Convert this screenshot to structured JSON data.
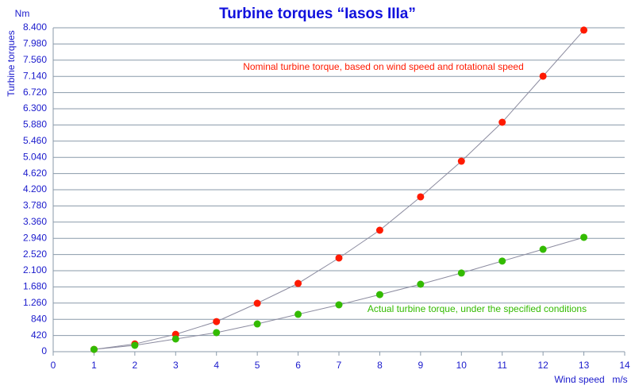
{
  "chart_data": {
    "type": "scatter-line",
    "title": "Turbine torques “Iasos IIIa”",
    "y_label": "Turbine torques",
    "y_unit": "Nm",
    "x_label": "Wind speed",
    "x_unit": "m/s",
    "x": [
      1,
      2,
      3,
      4,
      5,
      6,
      7,
      8,
      9,
      10,
      11,
      12,
      13
    ],
    "series": [
      {
        "name": "Nominal turbine torque, based on wind speed and rotational speed",
        "color": "#ff1a00",
        "values": [
          60,
          200,
          450,
          780,
          1255,
          1770,
          2430,
          3150,
          4015,
          4940,
          5950,
          7145,
          8340
        ]
      },
      {
        "name": "Actual turbine torque, under the specified conditions",
        "color": "#33bb00",
        "values": [
          60,
          165,
          330,
          495,
          720,
          970,
          1215,
          1480,
          1750,
          2040,
          2350,
          2655,
          2965
        ]
      }
    ],
    "xlim": [
      0,
      14
    ],
    "xticks": [
      0,
      1,
      2,
      3,
      4,
      5,
      6,
      7,
      8,
      9,
      10,
      11,
      12,
      13,
      14
    ],
    "ylim": [
      0,
      8400
    ],
    "yticks": [
      0,
      420,
      840,
      {
        "value": 1260,
        "label": "1.260"
      },
      {
        "value": 1680,
        "label": "1.680"
      },
      {
        "value": 2100,
        "label": "2.100"
      },
      {
        "value": 2520,
        "label": "2.520"
      },
      {
        "value": 2940,
        "label": "2.940"
      },
      {
        "value": 3360,
        "label": "3.360"
      },
      {
        "value": 3780,
        "label": "3.780"
      },
      {
        "value": 4200,
        "label": "4.200"
      },
      {
        "value": 4620,
        "label": "4.620"
      },
      {
        "value": 5040,
        "label": "5.040"
      },
      {
        "value": 5460,
        "label": "5.460"
      },
      {
        "value": 5880,
        "label": "5.880"
      },
      {
        "value": 6300,
        "label": "6.300"
      },
      {
        "value": 6720,
        "label": "6.720"
      },
      {
        "value": 7140,
        "label": "7.140"
      },
      {
        "value": 7560,
        "label": "7.560"
      },
      {
        "value": 7980,
        "label": "7.980"
      },
      {
        "value": 8400,
        "label": "8.400"
      }
    ],
    "grid": true
  }
}
